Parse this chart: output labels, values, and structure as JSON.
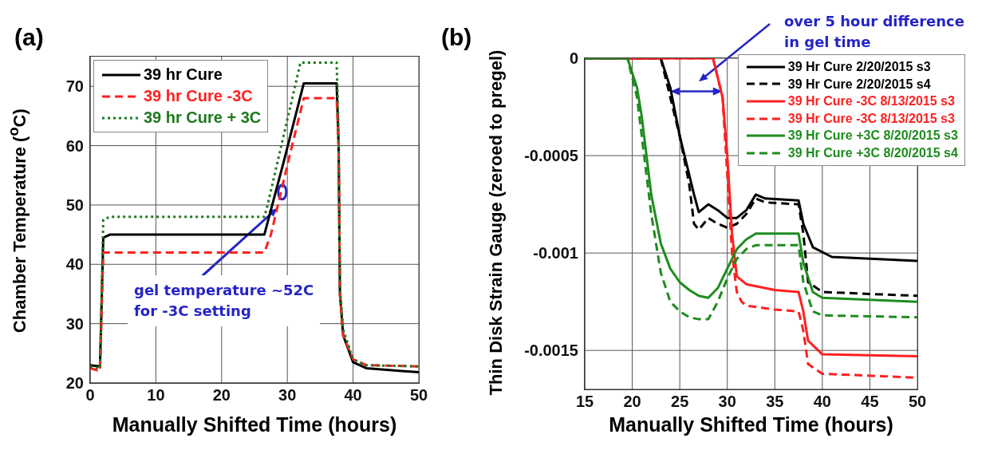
{
  "chart_data": [
    {
      "type": "line",
      "title": "(a)",
      "xlabel": "Manually Shifted Time (hours)",
      "ylabel": "Chamber Temperature ($^{o}$C)",
      "xlim": [
        0,
        50
      ],
      "ylim": [
        20,
        75
      ],
      "xticks": [
        0,
        10,
        20,
        30,
        40,
        50
      ],
      "yticks": [
        20,
        30,
        40,
        50,
        60,
        70
      ],
      "grid": true,
      "legend": "top left",
      "annotations": [
        {
          "text": "gel temperature ~52C\nfor -3C setting",
          "x": 28.5,
          "y": 49.5
        }
      ],
      "series": [
        {
          "name": "39 hr Cure",
          "color": "#000000",
          "line_style": "solid",
          "x": [
            0,
            1.5,
            2,
            3,
            26.5,
            29.5,
            32.5,
            37.5,
            37.8,
            38,
            38.5,
            40,
            42,
            50
          ],
          "values": [
            23,
            22.8,
            44.5,
            45,
            45,
            57.5,
            70.5,
            70.5,
            60,
            35,
            28,
            23.5,
            22.5,
            21.8
          ]
        },
        {
          "name": "39 hr Cure -3C",
          "color": "#ff2020",
          "line_style": "dashed",
          "x": [
            0,
            1.5,
            2,
            26.5,
            27.5,
            30.5,
            32.5,
            37.5,
            37.8,
            38,
            38.5,
            40,
            42,
            50
          ],
          "values": [
            22.5,
            22,
            42,
            42,
            45,
            59,
            68,
            68,
            60,
            35,
            28,
            24,
            23,
            22.8
          ]
        },
        {
          "name": "39 hr Cure + 3C",
          "color": "#1e7a1e",
          "line_style": "dotted",
          "x": [
            0,
            1.5,
            2,
            3,
            26.5,
            27,
            32,
            37.5,
            37.8,
            38,
            38.5,
            40,
            42,
            50
          ],
          "values": [
            22.8,
            22.5,
            47.5,
            48,
            48,
            50,
            74,
            74,
            62,
            36,
            29,
            24,
            23,
            22.8
          ]
        }
      ]
    },
    {
      "type": "line",
      "title": "(b)",
      "xlabel": "Manually Shifted Time (hours)",
      "ylabel": "Thin Disk Strain Gauge (zeroed to pregel)",
      "xlim": [
        15,
        50
      ],
      "ylim": [
        -0.0017,
        0
      ],
      "xticks": [
        15,
        20,
        25,
        30,
        35,
        40,
        45,
        50
      ],
      "yticks": [
        -0.0015,
        -0.001,
        -0.0005,
        0
      ],
      "grid": true,
      "legend": "top right",
      "annotations": [
        "over 5 hour difference\nin gel time"
      ],
      "series": [
        {
          "name": "39 Hr Cure 2/20/2015 s3",
          "color": "#000000",
          "line_style": "solid",
          "x": [
            15,
            23,
            24,
            25,
            26,
            26.5,
            27,
            28,
            29,
            30,
            31,
            32,
            33,
            34,
            37.5,
            38,
            39,
            41,
            50
          ],
          "values": [
            0,
            0,
            -0.00015,
            -0.0004,
            -0.0006,
            -0.0007,
            -0.00079,
            -0.00075,
            -0.00078,
            -0.00082,
            -0.00082,
            -0.00078,
            -0.0007,
            -0.00072,
            -0.00073,
            -0.00085,
            -0.00097,
            -0.00102,
            -0.00104
          ]
        },
        {
          "name": "39 Hr Cure 2/20/2015 s4",
          "color": "#000000",
          "line_style": "dashed",
          "x": [
            15,
            23,
            24,
            25,
            26,
            26.5,
            27,
            28,
            29,
            30,
            31,
            32,
            33,
            34,
            37.5,
            38,
            38.5,
            40,
            50
          ],
          "values": [
            0,
            0,
            -0.0002,
            -0.0004,
            -0.00065,
            -0.00085,
            -0.00088,
            -0.00082,
            -0.00085,
            -0.00087,
            -0.00085,
            -0.0008,
            -0.00072,
            -0.00074,
            -0.00075,
            -0.0009,
            -0.00115,
            -0.0012,
            -0.00122
          ]
        },
        {
          "name": "39 Hr Cure -3C 8/13/2015 s3",
          "color": "#ff2020",
          "line_style": "solid",
          "x": [
            15,
            28.5,
            29.5,
            30,
            30.5,
            31,
            32,
            35,
            37.5,
            38,
            38.5,
            40,
            50
          ],
          "values": [
            0,
            0,
            -0.0002,
            -0.0005,
            -0.0009,
            -0.00112,
            -0.00116,
            -0.00119,
            -0.0012,
            -0.0013,
            -0.00145,
            -0.00152,
            -0.00153
          ]
        },
        {
          "name": "39 Hr Cure -3C 8/13/2015 s3",
          "color": "#ff2020",
          "line_style": "dashed",
          "x": [
            15,
            28.5,
            29.5,
            30,
            30.5,
            31,
            31.5,
            32,
            35,
            37.5,
            38,
            38.5,
            40,
            50
          ],
          "values": [
            0,
            0,
            -0.0002,
            -0.0006,
            -0.001,
            -0.0012,
            -0.00125,
            -0.00127,
            -0.00129,
            -0.0013,
            -0.0014,
            -0.00157,
            -0.00162,
            -0.00164
          ]
        },
        {
          "name": "39 Hr Cure +3C 8/20/2015 s3",
          "color": "#1e8c1e",
          "line_style": "solid",
          "x": [
            15,
            19.5,
            20.5,
            21,
            21.5,
            22,
            23,
            24,
            25,
            26,
            27,
            28,
            29,
            30,
            31,
            32,
            33,
            37.5,
            38,
            39,
            40,
            50
          ],
          "values": [
            0,
            0,
            -0.00015,
            -0.0003,
            -0.0005,
            -0.0007,
            -0.00095,
            -0.00108,
            -0.00115,
            -0.00119,
            -0.00122,
            -0.00123,
            -0.00118,
            -0.00108,
            -0.00098,
            -0.00093,
            -0.0009,
            -0.0009,
            -0.00105,
            -0.0012,
            -0.00123,
            -0.00125
          ]
        },
        {
          "name": "39 Hr Cure +3C 8/20/2015 s4",
          "color": "#1e8c1e",
          "line_style": "dashed",
          "x": [
            15,
            19.5,
            20.5,
            21,
            21.5,
            22,
            23,
            24,
            25,
            26,
            27,
            28,
            29,
            30,
            31,
            32,
            33,
            37.5,
            38,
            39,
            40,
            50
          ],
          "values": [
            0,
            0,
            -0.0002,
            -0.0004,
            -0.0006,
            -0.0008,
            -0.0011,
            -0.00125,
            -0.0013,
            -0.00133,
            -0.00134,
            -0.00134,
            -0.00125,
            -0.00113,
            -0.00103,
            -0.00098,
            -0.00096,
            -0.00096,
            -0.00115,
            -0.0013,
            -0.00132,
            -0.00133
          ]
        }
      ]
    }
  ]
}
